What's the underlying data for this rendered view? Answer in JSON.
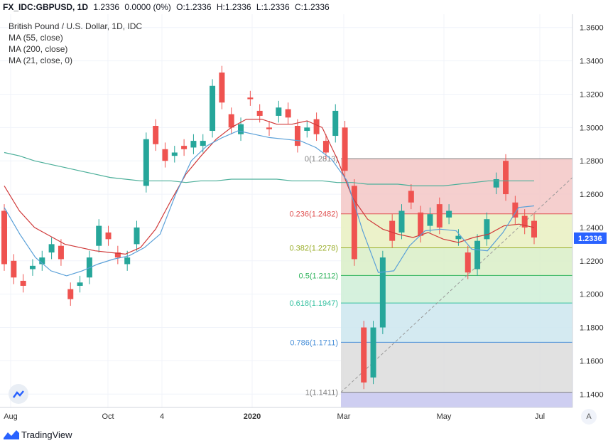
{
  "header": {
    "symbol": "FX_IDC:GBPUSD, 1D",
    "last": "1.2336",
    "change": "0.0000 (0%)",
    "open": "O:1.2336",
    "high": "H:1.2336",
    "low": "L:1.2336",
    "close": "C:1.2336"
  },
  "legend": {
    "title": "British Pound / U.S. Dollar, 1D, IDC",
    "ma1": "MA (55, close)",
    "ma2": "MA (200, close)",
    "ma3": "MA (21, close, 0)"
  },
  "footer": {
    "brand": "TradingView",
    "auto_button": "A"
  },
  "colors": {
    "up": "#26a69a",
    "down": "#ef5350",
    "ma55": "#5aa0d8",
    "ma200": "#4caf9a",
    "ma21": "#d03a3a",
    "fib_0": "#808080",
    "fib_0236": "#e05252",
    "fib_0382": "#9aae2a",
    "fib_05": "#2fb35c",
    "fib_0618": "#35c0a0",
    "fib_0786": "#4a90d9",
    "fib_1": "#808080"
  },
  "chart_data": {
    "type": "candlestick",
    "instrument": "GBPUSD",
    "price_axis": {
      "ticks": [
        "1.1400",
        "1.1600",
        "1.1800",
        "1.2000",
        "1.2200",
        "1.2400",
        "1.2600",
        "1.2800",
        "1.3000",
        "1.3200",
        "1.3400",
        "1.3600"
      ],
      "range": [
        1.132,
        1.368
      ],
      "current_price_label": "1.2336"
    },
    "time_axis": {
      "labels": [
        "Aug",
        "Oct",
        "4",
        "2020",
        "Mar",
        "May",
        "Jul"
      ]
    },
    "ohlc_path": [
      [
        1.25,
        1.218
      ],
      [
        1.22,
        1.21
      ],
      [
        1.208,
        1.205
      ],
      [
        1.215,
        1.217
      ],
      [
        1.218,
        1.222
      ],
      [
        1.225,
        1.23
      ],
      [
        1.229,
        1.221
      ],
      [
        1.203,
        1.197
      ],
      [
        1.205,
        1.207
      ],
      [
        1.21,
        1.222
      ],
      [
        1.229,
        1.241
      ],
      [
        1.237,
        1.233
      ],
      [
        1.225,
        1.222
      ],
      [
        1.218,
        1.222
      ],
      [
        1.23,
        1.24
      ],
      [
        1.265,
        1.293
      ],
      [
        1.301,
        1.29
      ],
      [
        1.287,
        1.28
      ],
      [
        1.283,
        1.285
      ],
      [
        1.289,
        1.287
      ],
      [
        1.288,
        1.292
      ],
      [
        1.289,
        1.292
      ],
      [
        1.298,
        1.325
      ],
      [
        1.333,
        1.315
      ],
      [
        1.308,
        1.3
      ],
      [
        1.296,
        1.302
      ],
      [
        1.318,
        1.317
      ],
      [
        1.31,
        1.307
      ],
      [
        1.3,
        1.299
      ],
      [
        1.307,
        1.312
      ],
      [
        1.311,
        1.306
      ],
      [
        1.301,
        1.289
      ],
      [
        1.298,
        1.3
      ],
      [
        1.305,
        1.296
      ],
      [
        1.292,
        1.285
      ],
      [
        1.295,
        1.31
      ],
      [
        1.3,
        1.274
      ],
      [
        1.265,
        1.221
      ],
      [
        1.18,
        1.147
      ],
      [
        1.15,
        1.18
      ],
      [
        1.18,
        1.222
      ],
      [
        1.244,
        1.232
      ],
      [
        1.237,
        1.25
      ],
      [
        1.262,
        1.255
      ],
      [
        1.249,
        1.235
      ],
      [
        1.241,
        1.248
      ],
      [
        1.254,
        1.24
      ],
      [
        1.246,
        1.25
      ],
      [
        1.233,
        1.235
      ],
      [
        1.225,
        1.213
      ],
      [
        1.215,
        1.232
      ],
      [
        1.233,
        1.245
      ],
      [
        1.264,
        1.269
      ],
      [
        1.28,
        1.26
      ],
      [
        1.255,
        1.246
      ],
      [
        1.247,
        1.24
      ],
      [
        1.244,
        1.234
      ]
    ],
    "moving_averages": [
      {
        "name": "MA (55, close)",
        "values": [
          1.252,
          1.236,
          1.222,
          1.214,
          1.211,
          1.214,
          1.218,
          1.221,
          1.223,
          1.228,
          1.236,
          1.26,
          1.28,
          1.289,
          1.294,
          1.298,
          1.296,
          1.294,
          1.293,
          1.292,
          1.288,
          1.281,
          1.268,
          1.238,
          1.213,
          1.214,
          1.229,
          1.238,
          1.239,
          1.238,
          1.227,
          1.226,
          1.237,
          1.252,
          1.253
        ]
      },
      {
        "name": "MA (200, close)",
        "values": [
          1.285,
          1.283,
          1.28,
          1.278,
          1.276,
          1.274,
          1.272,
          1.27,
          1.269,
          1.268,
          1.268,
          1.268,
          1.267,
          1.268,
          1.268,
          1.269,
          1.269,
          1.269,
          1.269,
          1.268,
          1.268,
          1.268,
          1.267,
          1.267,
          1.266,
          1.266,
          1.266,
          1.265,
          1.265,
          1.265,
          1.266,
          1.267,
          1.268,
          1.268,
          1.268,
          1.268
        ]
      },
      {
        "name": "MA (21, close, 0)",
        "values": [
          1.265,
          1.25,
          1.24,
          1.235,
          1.23,
          1.228,
          1.226,
          1.225,
          1.224,
          1.228,
          1.239,
          1.256,
          1.272,
          1.283,
          1.293,
          1.3,
          1.305,
          1.305,
          1.302,
          1.302,
          1.304,
          1.3,
          1.281,
          1.258,
          1.245,
          1.239,
          1.236,
          1.234,
          1.237,
          1.233,
          1.231,
          1.234,
          1.236,
          1.241,
          1.242,
          1.24
        ]
      }
    ],
    "fibonacci": {
      "levels": [
        {
          "label": "0(1.2813)",
          "value": 1.2813
        },
        {
          "label": "0.236(1.2482)",
          "value": 1.2482
        },
        {
          "label": "0.382(1.2278)",
          "value": 1.2278
        },
        {
          "label": "0.5(1.2112)",
          "value": 1.2112
        },
        {
          "label": "0.618(1.1947)",
          "value": 1.1947
        },
        {
          "label": "0.786(1.1711)",
          "value": 1.1711
        },
        {
          "label": "1(1.1411)",
          "value": 1.1411
        }
      ],
      "trend_line": {
        "from": 1.1411,
        "to": 1.27
      }
    }
  }
}
